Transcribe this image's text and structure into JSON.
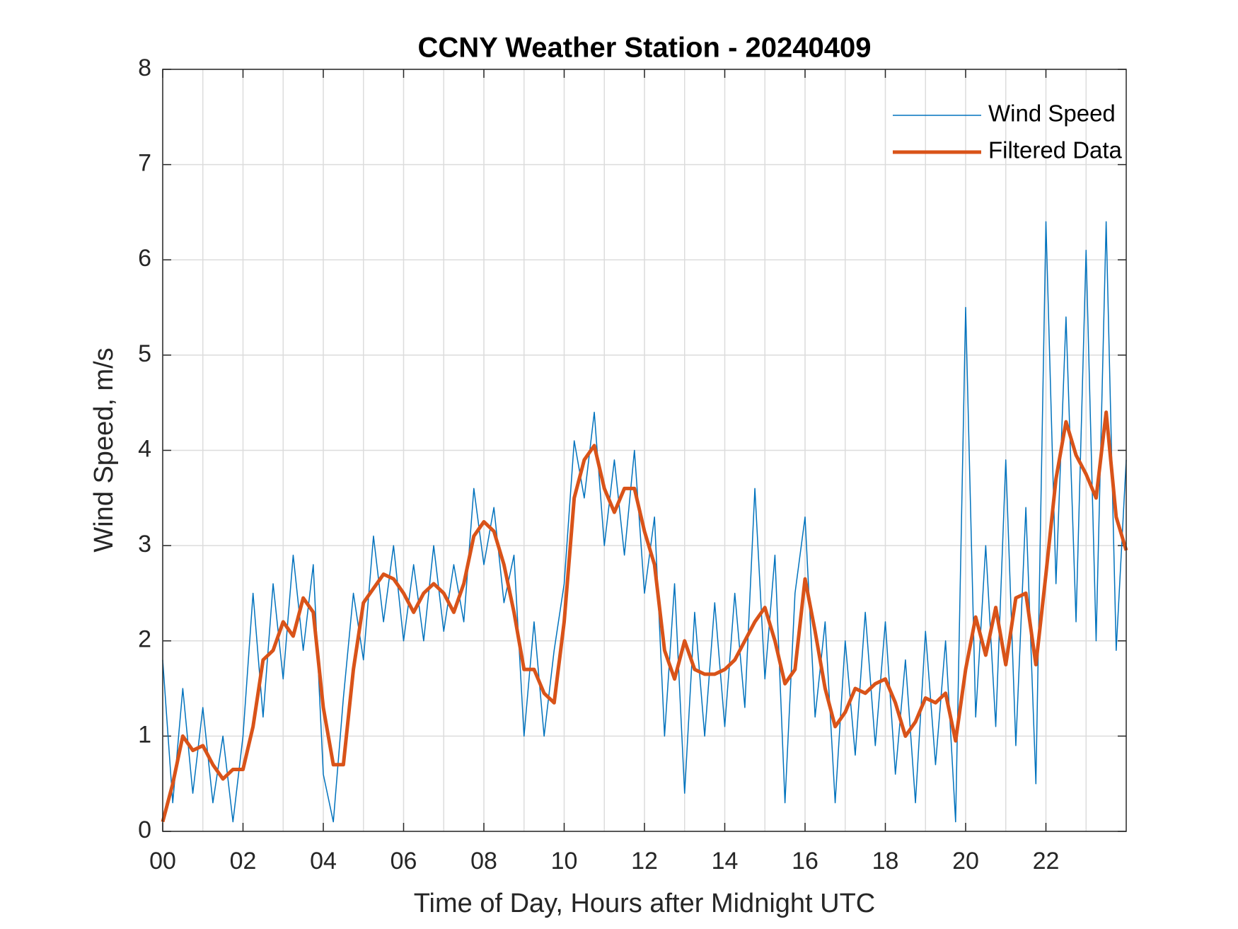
{
  "chart_data": {
    "type": "line",
    "title": "CCNY Weather Station - 20240409",
    "x_label": "Time of Day, Hours after Midnight UTC",
    "y_label": "Wind Speed, m/s",
    "x": [
      0,
      0.25,
      0.5,
      0.75,
      1,
      1.25,
      1.5,
      1.75,
      2,
      2.25,
      2.5,
      2.75,
      3,
      3.25,
      3.5,
      3.75,
      4,
      4.25,
      4.5,
      4.75,
      5,
      5.25,
      5.5,
      5.75,
      6,
      6.25,
      6.5,
      6.75,
      7,
      7.25,
      7.5,
      7.75,
      8,
      8.25,
      8.5,
      8.75,
      9,
      9.25,
      9.5,
      9.75,
      10,
      10.25,
      10.5,
      10.75,
      11,
      11.25,
      11.5,
      11.75,
      12,
      12.25,
      12.5,
      12.75,
      13,
      13.25,
      13.5,
      13.75,
      14,
      14.25,
      14.5,
      14.75,
      15,
      15.25,
      15.5,
      15.75,
      16,
      16.25,
      16.5,
      16.75,
      17,
      17.25,
      17.5,
      17.75,
      18,
      18.25,
      18.5,
      18.75,
      19,
      19.25,
      19.5,
      19.75,
      20,
      20.25,
      20.5,
      20.75,
      21,
      21.25,
      21.5,
      21.75,
      22,
      22.25,
      22.5,
      22.75,
      23,
      23.25,
      23.5,
      23.75,
      24
    ],
    "series": [
      {
        "name": "Wind Speed",
        "color": "#0072bd",
        "width": 1.5,
        "values": [
          1.8,
          0.3,
          1.5,
          0.4,
          1.3,
          0.3,
          1.0,
          0.1,
          1.0,
          2.5,
          1.2,
          2.6,
          1.6,
          2.9,
          1.9,
          2.8,
          0.6,
          0.1,
          1.4,
          2.5,
          1.8,
          3.1,
          2.2,
          3.0,
          2.0,
          2.8,
          2.0,
          3.0,
          2.1,
          2.8,
          2.2,
          3.6,
          2.8,
          3.4,
          2.4,
          2.9,
          1.0,
          2.2,
          1.0,
          1.9,
          2.6,
          4.1,
          3.5,
          4.4,
          3.0,
          3.9,
          2.9,
          4.0,
          2.5,
          3.3,
          1.0,
          2.6,
          0.4,
          2.3,
          1.0,
          2.4,
          1.1,
          2.5,
          1.3,
          3.6,
          1.6,
          2.9,
          0.3,
          2.5,
          3.3,
          1.2,
          2.2,
          0.3,
          2.0,
          0.8,
          2.3,
          0.9,
          2.2,
          0.6,
          1.8,
          0.3,
          2.1,
          0.7,
          2.0,
          0.1,
          5.5,
          1.2,
          3.0,
          1.1,
          3.9,
          0.9,
          3.4,
          0.5,
          6.4,
          2.6,
          5.4,
          2.2,
          6.1,
          2.0,
          6.4,
          1.9,
          3.9
        ]
      },
      {
        "name": "Filtered Data",
        "color": "#d95319",
        "width": 5,
        "values": [
          0.1,
          0.5,
          1.0,
          0.85,
          0.9,
          0.7,
          0.55,
          0.65,
          0.65,
          1.1,
          1.8,
          1.9,
          2.2,
          2.05,
          2.45,
          2.3,
          1.3,
          0.7,
          0.7,
          1.7,
          2.4,
          2.55,
          2.7,
          2.65,
          2.5,
          2.3,
          2.5,
          2.6,
          2.5,
          2.3,
          2.6,
          3.1,
          3.25,
          3.15,
          2.8,
          2.3,
          1.7,
          1.7,
          1.45,
          1.35,
          2.2,
          3.5,
          3.9,
          4.05,
          3.6,
          3.35,
          3.6,
          3.6,
          3.15,
          2.8,
          1.9,
          1.6,
          2.0,
          1.7,
          1.65,
          1.65,
          1.7,
          1.8,
          2.0,
          2.2,
          2.35,
          2.0,
          1.55,
          1.7,
          2.65,
          2.1,
          1.5,
          1.1,
          1.25,
          1.5,
          1.45,
          1.55,
          1.6,
          1.35,
          1.0,
          1.15,
          1.4,
          1.35,
          1.45,
          0.95,
          1.7,
          2.25,
          1.85,
          2.35,
          1.75,
          2.45,
          2.5,
          1.75,
          2.7,
          3.7,
          4.3,
          3.95,
          3.75,
          3.5,
          4.4,
          3.3,
          2.95
        ]
      }
    ],
    "xlim": [
      0,
      24
    ],
    "xticks": [
      {
        "value": 0,
        "label": "00"
      },
      {
        "value": 2,
        "label": "02"
      },
      {
        "value": 4,
        "label": "04"
      },
      {
        "value": 6,
        "label": "06"
      },
      {
        "value": 8,
        "label": "08"
      },
      {
        "value": 10,
        "label": "10"
      },
      {
        "value": 12,
        "label": "12"
      },
      {
        "value": 14,
        "label": "14"
      },
      {
        "value": 16,
        "label": "16"
      },
      {
        "value": 18,
        "label": "18"
      },
      {
        "value": 20,
        "label": "20"
      },
      {
        "value": 22,
        "label": "22"
      }
    ],
    "xminorticks": [
      1,
      3,
      5,
      7,
      9,
      11,
      13,
      15,
      17,
      19,
      21,
      23
    ],
    "ylim": [
      0,
      8
    ],
    "yticks": [
      0,
      1,
      2,
      3,
      4,
      5,
      6,
      7,
      8
    ],
    "grid": true,
    "legend": "upper right"
  }
}
